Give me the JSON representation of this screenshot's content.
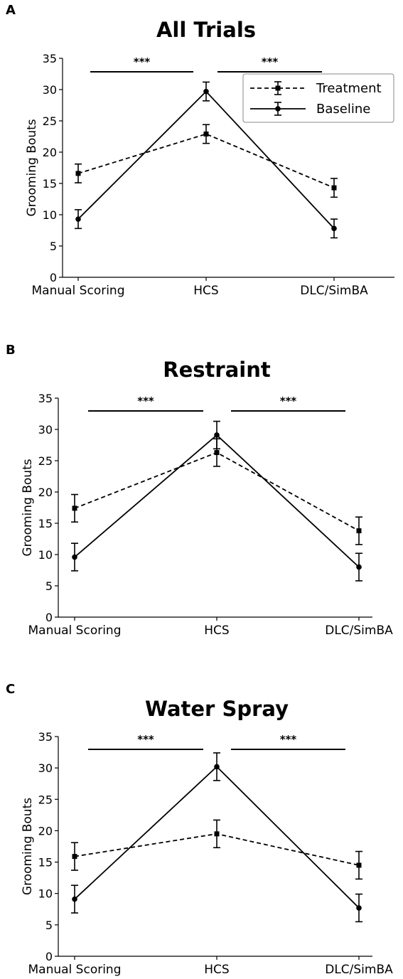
{
  "chart_data": [
    {
      "panel_label": "A",
      "type": "line",
      "title": "All Trials",
      "xlabel": "",
      "ylabel": "Grooming Bouts",
      "categories": [
        "Manual Scoring",
        "HCS",
        "DLC/SimBA"
      ],
      "ylim": [
        0,
        35
      ],
      "yticks": [
        0,
        5,
        10,
        15,
        20,
        25,
        30,
        35
      ],
      "series": [
        {
          "name": "Treatment",
          "style": "dashed",
          "marker": "square",
          "values": [
            16.6,
            22.9,
            14.3
          ],
          "errors": [
            1.5,
            1.5,
            1.5
          ]
        },
        {
          "name": "Baseline",
          "style": "solid",
          "marker": "circle",
          "values": [
            9.3,
            29.7,
            7.8
          ],
          "errors": [
            1.5,
            1.5,
            1.5
          ]
        }
      ],
      "significance": [
        {
          "from": "Manual Scoring",
          "to": "HCS",
          "label": "***"
        },
        {
          "from": "HCS",
          "to": "DLC/SimBA",
          "label": "***"
        }
      ],
      "legend": "top-right",
      "grid": false
    },
    {
      "panel_label": "B",
      "type": "line",
      "title": "Restraint",
      "xlabel": "",
      "ylabel": "Grooming Bouts",
      "categories": [
        "Manual Scoring",
        "HCS",
        "DLC/SimBA"
      ],
      "ylim": [
        0,
        35
      ],
      "yticks": [
        0,
        5,
        10,
        15,
        20,
        25,
        30,
        35
      ],
      "series": [
        {
          "name": "Treatment",
          "style": "dashed",
          "marker": "square",
          "values": [
            17.4,
            26.3,
            13.8
          ],
          "errors": [
            2.2,
            2.2,
            2.2
          ]
        },
        {
          "name": "Baseline",
          "style": "solid",
          "marker": "circle",
          "values": [
            9.6,
            29.1,
            8.0
          ],
          "errors": [
            2.2,
            2.2,
            2.2
          ]
        }
      ],
      "significance": [
        {
          "from": "Manual Scoring",
          "to": "HCS",
          "label": "***"
        },
        {
          "from": "HCS",
          "to": "DLC/SimBA",
          "label": "***"
        }
      ],
      "legend": "none",
      "grid": false
    },
    {
      "panel_label": "C",
      "type": "line",
      "title": "Water Spray",
      "xlabel": "",
      "ylabel": "Grooming Bouts",
      "categories": [
        "Manual Scoring",
        "HCS",
        "DLC/SimBA"
      ],
      "ylim": [
        0,
        35
      ],
      "yticks": [
        0,
        5,
        10,
        15,
        20,
        25,
        30,
        35
      ],
      "series": [
        {
          "name": "Treatment",
          "style": "dashed",
          "marker": "square",
          "values": [
            15.9,
            19.5,
            14.5
          ],
          "errors": [
            2.2,
            2.2,
            2.2
          ]
        },
        {
          "name": "Baseline",
          "style": "solid",
          "marker": "circle",
          "values": [
            9.1,
            30.2,
            7.7
          ],
          "errors": [
            2.2,
            2.2,
            2.2
          ]
        }
      ],
      "significance": [
        {
          "from": "Manual Scoring",
          "to": "HCS",
          "label": "***"
        },
        {
          "from": "HCS",
          "to": "DLC/SimBA",
          "label": "***"
        }
      ],
      "legend": "none",
      "grid": false
    }
  ],
  "colors": {
    "line": "#000000",
    "background": "#ffffff"
  }
}
